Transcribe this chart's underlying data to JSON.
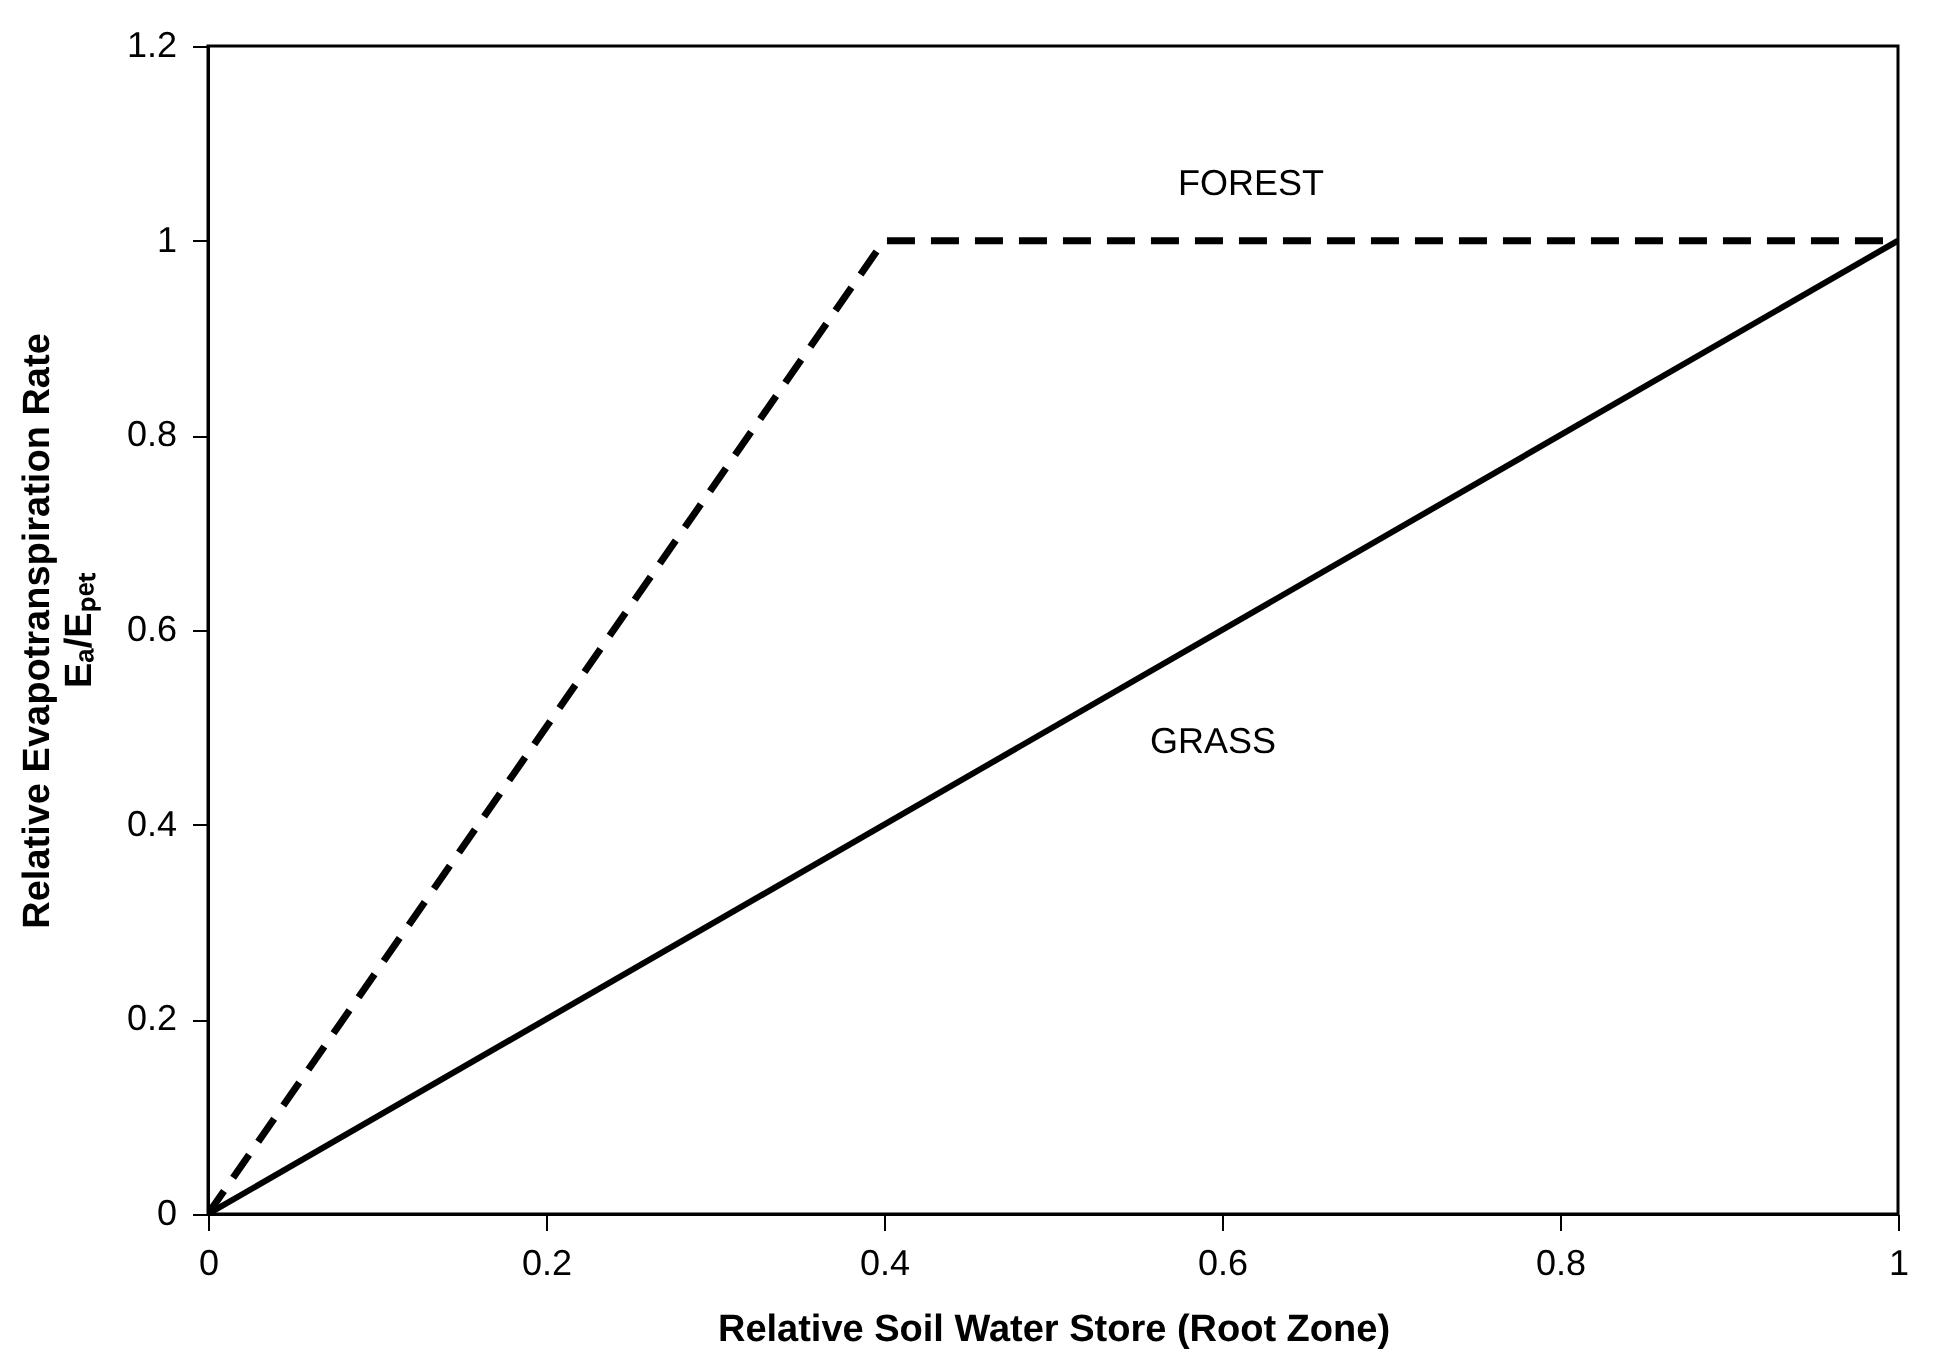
{
  "chart_data": {
    "type": "line",
    "xlabel": "Relative Soil Water Store (Root Zone)",
    "ylabel": "Relative Evapotranspiration Rate\nEₐ/Eₚₑₜ",
    "series": [
      {
        "name": "FOREST",
        "color": "#000000",
        "x": [
          0,
          0.4,
          1
        ],
        "values": [
          0,
          1,
          1
        ],
        "line_style": "dashed"
      },
      {
        "name": "GRASS",
        "color": "#000000",
        "x": [
          0,
          1
        ],
        "values": [
          0,
          1
        ],
        "line_style": "solid"
      }
    ],
    "xlim": [
      0,
      1
    ],
    "xticks": [
      0,
      0.2,
      0.4,
      0.6,
      0.8,
      1
    ],
    "ylim": [
      0,
      1.2
    ],
    "yticks": [
      0,
      0.2,
      0.4,
      0.6,
      0.8,
      1,
      1.2
    ],
    "grid": false,
    "marker": "none"
  }
}
